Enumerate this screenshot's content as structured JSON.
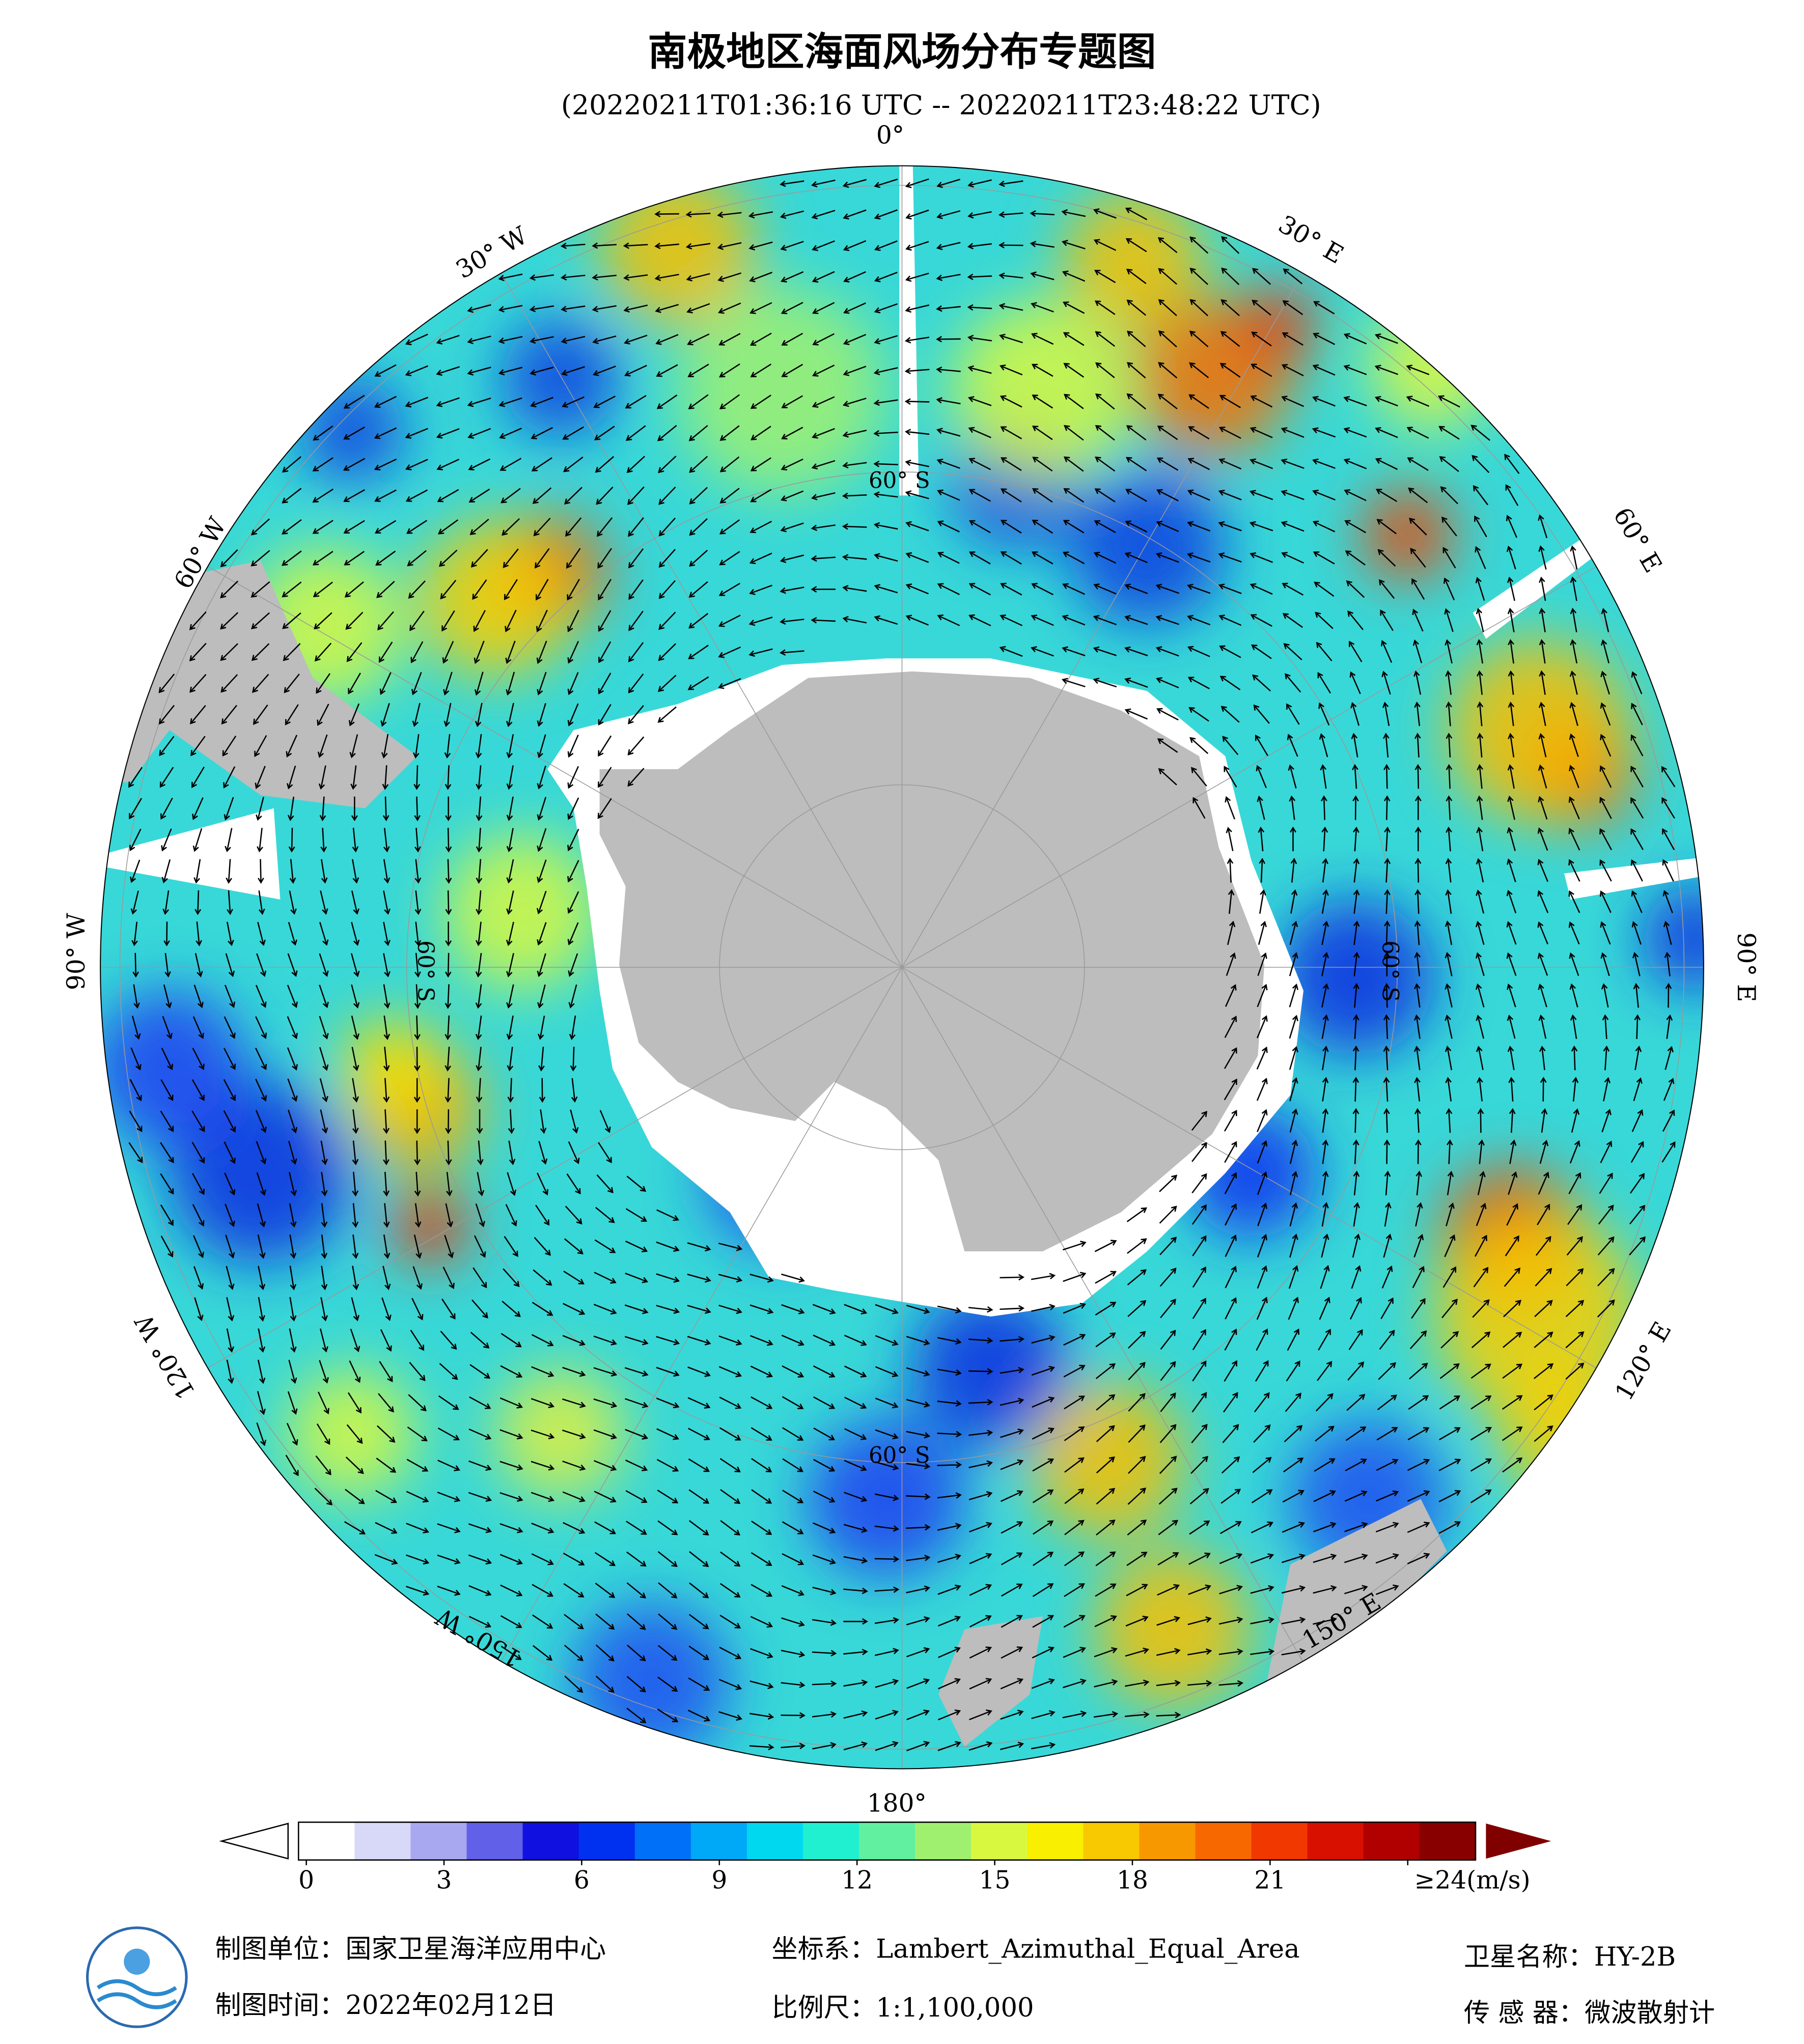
{
  "header": {
    "title": "南极地区海面风场分布专题图",
    "subtitle": "(20220211T01:36:16 UTC -- 20220211T23:48:22 UTC)"
  },
  "map": {
    "longitude_labels": [
      "0°",
      "30° E",
      "60° E",
      "90° E",
      "120° E",
      "150° E",
      "180°",
      "150° W",
      "120° W",
      "90° W",
      "60° W",
      "30° W"
    ],
    "latitude_labels": [
      "60° S",
      "60° S",
      "60° S",
      "60° S"
    ]
  },
  "colorbar": {
    "range": [
      0,
      24
    ],
    "ticks": [
      0,
      3,
      6,
      9,
      12,
      15,
      18,
      21,
      {
        "value": 24,
        "label": "≥24(m/s)"
      }
    ],
    "colors": [
      "#ffffff",
      "#d8d8f8",
      "#a8a8f0",
      "#6060e8",
      "#1010e0",
      "#0030f0",
      "#0070f8",
      "#00a8f8",
      "#00d8f0",
      "#20f0d0",
      "#60f0a0",
      "#a0f070",
      "#d8f840",
      "#f8f000",
      "#f8c800",
      "#f89800",
      "#f86800",
      "#f03800",
      "#d81000",
      "#b00000",
      "#880000"
    ],
    "over_color": "#800000"
  },
  "footer": {
    "producer": "制图单位：国家卫星海洋应用中心",
    "date": "制图时间：2022年02月12日",
    "crs": "坐标系：Lambert_Azimuthal_Equal_Area",
    "scale": "比例尺：1:1,100,000",
    "satellite": "卫星名称：HY-2B",
    "sensor": "传 感 器：微波散射计"
  }
}
